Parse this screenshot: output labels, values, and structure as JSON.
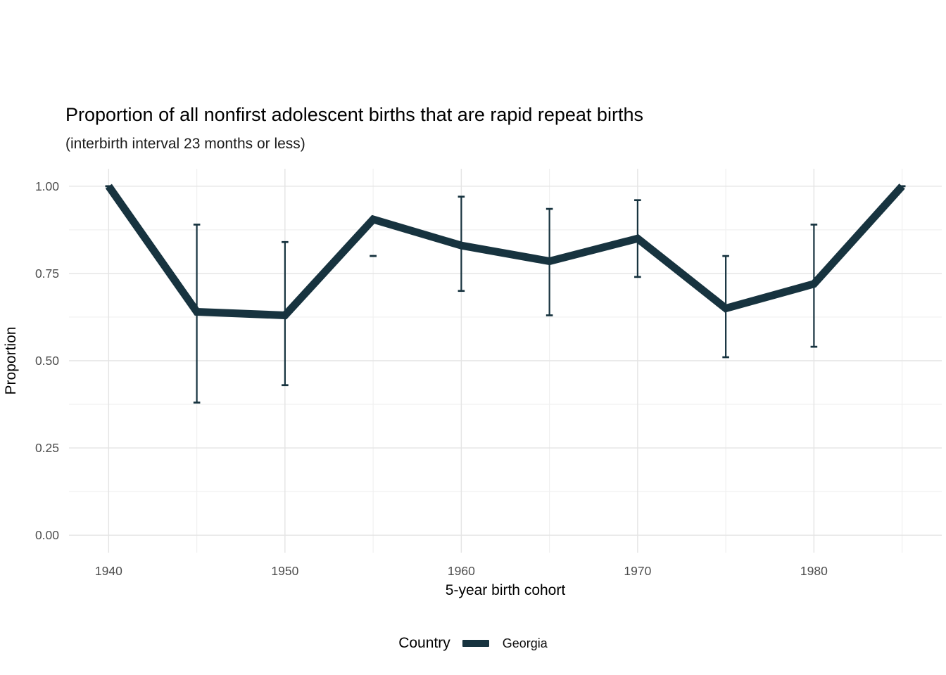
{
  "colors": {
    "series": "#17333F",
    "grid_major": "#E4E4E4",
    "grid_minor": "#F0F0F0",
    "tick_text": "#4D4D4D",
    "title_text": "#000000",
    "background": "#FFFFFF"
  },
  "chart_data": {
    "type": "line",
    "title": "Proportion of all nonfirst adolescent births that are rapid repeat births",
    "subtitle": "(interbirth interval 23 months or less)",
    "xlabel": "5-year birth cohort",
    "ylabel": "Proportion",
    "grid": true,
    "xlim": [
      1937.75,
      1987.25
    ],
    "ylim": [
      -0.05,
      1.05
    ],
    "x_ticks": [
      1940,
      1950,
      1960,
      1970,
      1980
    ],
    "x_tick_labels": [
      "1940",
      "1950",
      "1960",
      "1970",
      "1980"
    ],
    "x_minor": [
      1945,
      1955,
      1965,
      1975,
      1985
    ],
    "y_ticks": [
      0,
      0.25,
      0.5,
      0.75,
      1.0
    ],
    "y_tick_labels": [
      "0.00",
      "0.25",
      "0.50",
      "0.75",
      "1.00"
    ],
    "y_minor": [
      0.125,
      0.375,
      0.625,
      0.875
    ],
    "x": [
      1940,
      1945,
      1950,
      1955,
      1960,
      1965,
      1970,
      1975,
      1980,
      1985
    ],
    "series": [
      {
        "name": "Georgia",
        "color": "#17333F",
        "values": [
          1.0,
          0.64,
          0.63,
          0.905,
          0.83,
          0.785,
          0.85,
          0.65,
          0.72,
          1.0
        ],
        "ci_low": [
          1.0,
          0.38,
          0.43,
          0.8,
          0.7,
          0.63,
          0.74,
          0.51,
          0.54,
          1.0
        ],
        "ci_high": [
          1.0,
          0.89,
          0.84,
          0.8,
          0.97,
          0.935,
          0.96,
          0.8,
          0.89,
          1.0
        ]
      }
    ],
    "legend": {
      "title": "Country",
      "position": "bottom",
      "entries": [
        {
          "label": "Georgia",
          "color": "#17333F"
        }
      ]
    }
  }
}
